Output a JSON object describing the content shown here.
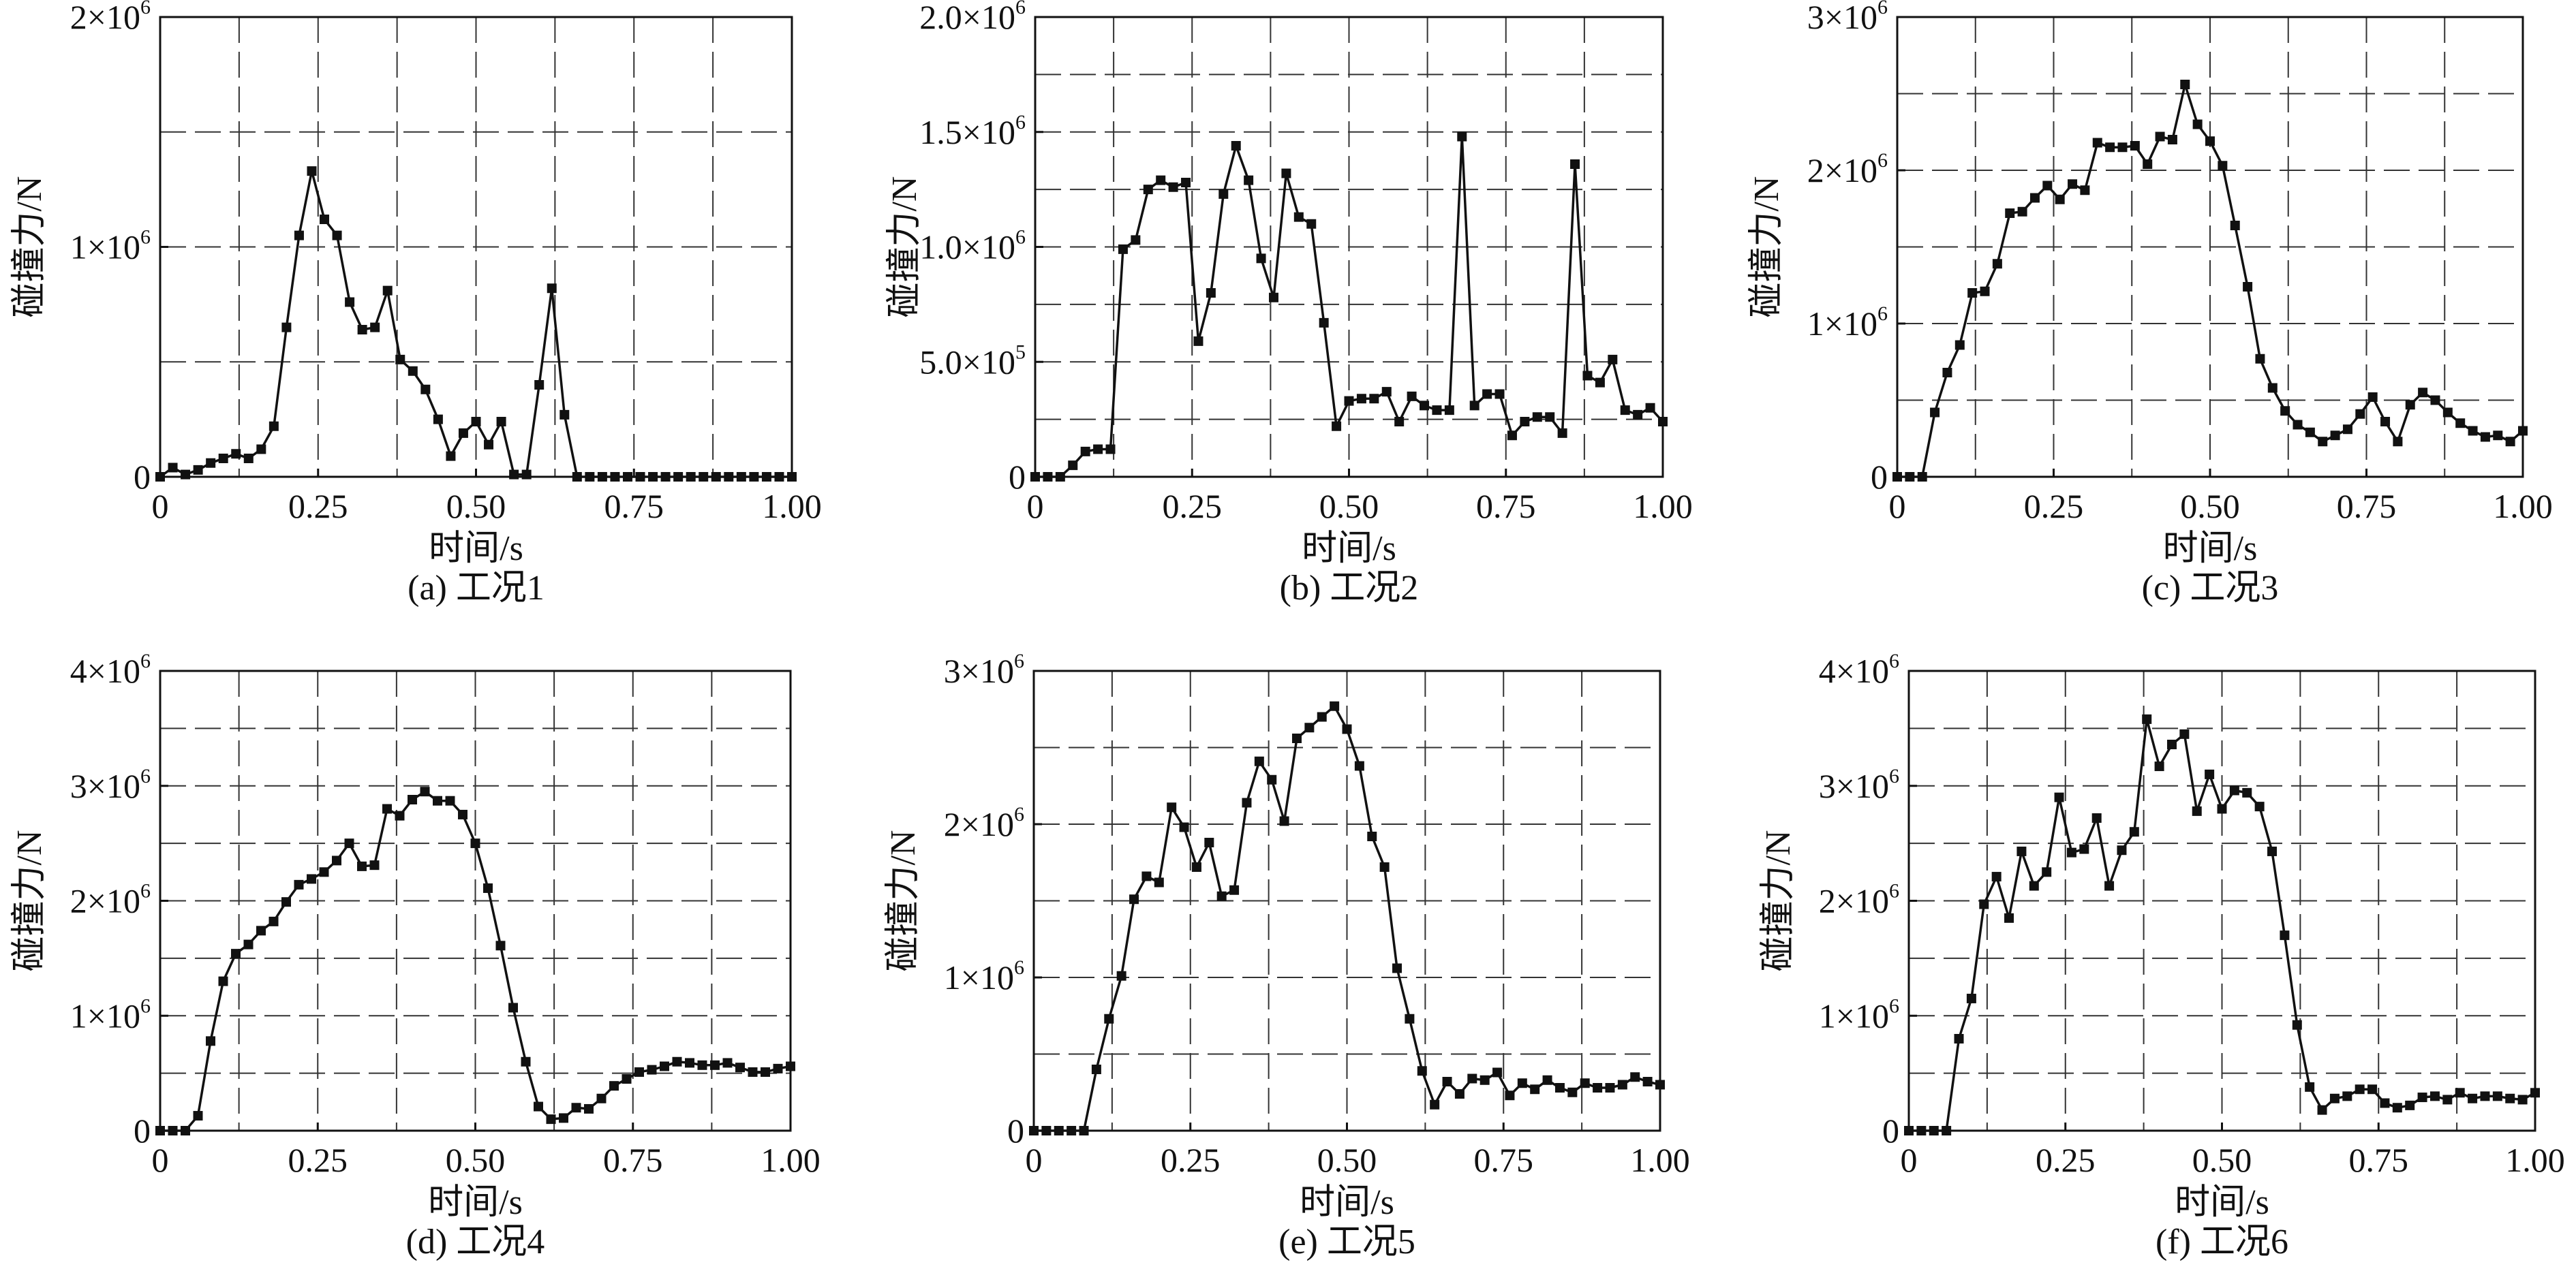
{
  "chart_data": [
    {
      "type": "line",
      "caption": "(a) 工况1",
      "xlabel": "时间/s",
      "ylabel": "碰撞力/N",
      "xlim": [
        0,
        1
      ],
      "ylim": [
        0,
        2000000
      ],
      "xticks": [
        {
          "v": 0,
          "label": "0"
        },
        {
          "v": 0.25,
          "label": "0.25"
        },
        {
          "v": 0.5,
          "label": "0.50"
        },
        {
          "v": 0.75,
          "label": "0.75"
        },
        {
          "v": 1,
          "label": "1.00"
        }
      ],
      "yticks": [
        {
          "v": 0,
          "label": "0",
          "exp": ""
        },
        {
          "v": 1000000,
          "label": "1×10",
          "exp": "6"
        },
        {
          "v": 2000000,
          "label": "2×10",
          "exp": "6"
        }
      ],
      "x_grid": [
        0.125,
        0.25,
        0.375,
        0.5,
        0.625,
        0.75,
        0.875
      ],
      "y_grid": [
        500000,
        1000000,
        1500000
      ],
      "x": [
        0,
        0.02,
        0.04,
        0.06,
        0.08,
        0.1,
        0.12,
        0.14,
        0.16,
        0.18,
        0.2,
        0.22,
        0.24,
        0.26,
        0.28,
        0.3,
        0.32,
        0.34,
        0.36,
        0.38,
        0.4,
        0.42,
        0.44,
        0.46,
        0.48,
        0.5,
        0.52,
        0.54,
        0.56,
        0.58,
        0.6,
        0.62,
        0.64,
        0.66,
        0.68,
        0.7,
        0.72,
        0.74,
        0.76,
        0.78,
        0.8,
        0.82,
        0.84,
        0.86,
        0.88,
        0.9,
        0.92,
        0.94,
        0.96,
        0.98,
        1.0
      ],
      "y": [
        0,
        40000,
        10000,
        30000,
        60000,
        80000,
        100000,
        80000,
        120000,
        220000,
        650000,
        1050000,
        1330000,
        1120000,
        1050000,
        760000,
        640000,
        650000,
        810000,
        510000,
        460000,
        380000,
        250000,
        90000,
        190000,
        240000,
        140000,
        240000,
        10000,
        10000,
        400000,
        820000,
        270000,
        0,
        0,
        0,
        0,
        0,
        0,
        0,
        0,
        0,
        0,
        0,
        0,
        0,
        0,
        0,
        0,
        0,
        0
      ]
    },
    {
      "type": "line",
      "caption": "(b) 工况2",
      "xlabel": "时间/s",
      "ylabel": "碰撞力/N",
      "xlim": [
        0,
        1
      ],
      "ylim": [
        0,
        2000000
      ],
      "xticks": [
        {
          "v": 0,
          "label": "0"
        },
        {
          "v": 0.25,
          "label": "0.25"
        },
        {
          "v": 0.5,
          "label": "0.50"
        },
        {
          "v": 0.75,
          "label": "0.75"
        },
        {
          "v": 1,
          "label": "1.00"
        }
      ],
      "yticks": [
        {
          "v": 0,
          "label": "0",
          "exp": ""
        },
        {
          "v": 500000,
          "label": "5.0×10",
          "exp": "5"
        },
        {
          "v": 1000000,
          "label": "1.0×10",
          "exp": "6"
        },
        {
          "v": 1500000,
          "label": "1.5×10",
          "exp": "6"
        },
        {
          "v": 2000000,
          "label": "2.0×10",
          "exp": "6"
        }
      ],
      "x_grid": [
        0.125,
        0.25,
        0.375,
        0.5,
        0.625,
        0.75,
        0.875
      ],
      "y_grid": [
        250000,
        500000,
        750000,
        1000000,
        1250000,
        1500000,
        1750000
      ],
      "x": [
        0,
        0.02,
        0.04,
        0.06,
        0.08,
        0.1,
        0.12,
        0.14,
        0.16,
        0.18,
        0.2,
        0.22,
        0.24,
        0.26,
        0.28,
        0.3,
        0.32,
        0.34,
        0.36,
        0.38,
        0.4,
        0.42,
        0.44,
        0.46,
        0.48,
        0.5,
        0.52,
        0.54,
        0.56,
        0.58,
        0.6,
        0.62,
        0.64,
        0.66,
        0.68,
        0.7,
        0.72,
        0.74,
        0.76,
        0.78,
        0.8,
        0.82,
        0.84,
        0.86,
        0.88,
        0.9,
        0.92,
        0.94,
        0.96,
        0.98,
        1.0
      ],
      "y": [
        0,
        0,
        0,
        50000,
        110000,
        120000,
        120000,
        990000,
        1030000,
        1250000,
        1290000,
        1260000,
        1280000,
        590000,
        800000,
        1230000,
        1440000,
        1290000,
        950000,
        780000,
        1320000,
        1130000,
        1100000,
        670000,
        220000,
        330000,
        340000,
        340000,
        370000,
        240000,
        350000,
        310000,
        290000,
        290000,
        1480000,
        310000,
        360000,
        360000,
        180000,
        240000,
        260000,
        260000,
        190000,
        1360000,
        440000,
        410000,
        510000,
        290000,
        270000,
        300000,
        240000
      ]
    },
    {
      "type": "line",
      "caption": "(c) 工况3",
      "xlabel": "时间/s",
      "ylabel": "碰撞力/N",
      "xlim": [
        0,
        1
      ],
      "ylim": [
        0,
        3000000
      ],
      "xticks": [
        {
          "v": 0,
          "label": "0"
        },
        {
          "v": 0.25,
          "label": "0.25"
        },
        {
          "v": 0.5,
          "label": "0.50"
        },
        {
          "v": 0.75,
          "label": "0.75"
        },
        {
          "v": 1,
          "label": "1.00"
        }
      ],
      "yticks": [
        {
          "v": 0,
          "label": "0",
          "exp": ""
        },
        {
          "v": 1000000,
          "label": "1×10",
          "exp": "6"
        },
        {
          "v": 2000000,
          "label": "2×10",
          "exp": "6"
        },
        {
          "v": 3000000,
          "label": "3×10",
          "exp": "6"
        }
      ],
      "x_grid": [
        0.125,
        0.25,
        0.375,
        0.5,
        0.625,
        0.75,
        0.875
      ],
      "y_grid": [
        500000,
        1000000,
        1500000,
        2000000,
        2500000
      ],
      "x": [
        0,
        0.02,
        0.04,
        0.06,
        0.08,
        0.1,
        0.12,
        0.14,
        0.16,
        0.18,
        0.2,
        0.22,
        0.24,
        0.26,
        0.28,
        0.3,
        0.32,
        0.34,
        0.36,
        0.38,
        0.4,
        0.42,
        0.44,
        0.46,
        0.48,
        0.5,
        0.52,
        0.54,
        0.56,
        0.58,
        0.6,
        0.62,
        0.64,
        0.66,
        0.68,
        0.7,
        0.72,
        0.74,
        0.76,
        0.78,
        0.8,
        0.82,
        0.84,
        0.86,
        0.88,
        0.9,
        0.92,
        0.94,
        0.96,
        0.98,
        1.0
      ],
      "y": [
        0,
        0,
        0,
        420000,
        680000,
        860000,
        1200000,
        1210000,
        1390000,
        1720000,
        1730000,
        1820000,
        1900000,
        1810000,
        1910000,
        1870000,
        2180000,
        2150000,
        2150000,
        2160000,
        2040000,
        2220000,
        2200000,
        2560000,
        2300000,
        2190000,
        2030000,
        1640000,
        1240000,
        770000,
        580000,
        430000,
        340000,
        290000,
        230000,
        270000,
        310000,
        410000,
        520000,
        360000,
        230000,
        470000,
        550000,
        500000,
        420000,
        350000,
        300000,
        260000,
        270000,
        230000,
        300000
      ]
    },
    {
      "type": "line",
      "caption": "(d) 工况4",
      "xlabel": "时间/s",
      "ylabel": "碰撞力/N",
      "xlim": [
        0,
        1
      ],
      "ylim": [
        0,
        4000000
      ],
      "xticks": [
        {
          "v": 0,
          "label": "0"
        },
        {
          "v": 0.25,
          "label": "0.25"
        },
        {
          "v": 0.5,
          "label": "0.50"
        },
        {
          "v": 0.75,
          "label": "0.75"
        },
        {
          "v": 1,
          "label": "1.00"
        }
      ],
      "yticks": [
        {
          "v": 0,
          "label": "0",
          "exp": ""
        },
        {
          "v": 1000000,
          "label": "1×10",
          "exp": "6"
        },
        {
          "v": 2000000,
          "label": "2×10",
          "exp": "6"
        },
        {
          "v": 3000000,
          "label": "3×10",
          "exp": "6"
        },
        {
          "v": 4000000,
          "label": "4×10",
          "exp": "6"
        }
      ],
      "x_grid": [
        0.125,
        0.25,
        0.375,
        0.5,
        0.625,
        0.75,
        0.875
      ],
      "y_grid": [
        500000,
        1000000,
        1500000,
        2000000,
        2500000,
        3000000,
        3500000
      ],
      "x": [
        0,
        0.02,
        0.04,
        0.06,
        0.08,
        0.1,
        0.12,
        0.14,
        0.16,
        0.18,
        0.2,
        0.22,
        0.24,
        0.26,
        0.28,
        0.3,
        0.32,
        0.34,
        0.36,
        0.38,
        0.4,
        0.42,
        0.44,
        0.46,
        0.48,
        0.5,
        0.52,
        0.54,
        0.56,
        0.58,
        0.6,
        0.62,
        0.64,
        0.66,
        0.68,
        0.7,
        0.72,
        0.74,
        0.76,
        0.78,
        0.8,
        0.82,
        0.84,
        0.86,
        0.88,
        0.9,
        0.92,
        0.94,
        0.96,
        0.98,
        1.0
      ],
      "y": [
        0,
        0,
        0,
        130000,
        780000,
        1300000,
        1540000,
        1620000,
        1740000,
        1820000,
        1990000,
        2140000,
        2190000,
        2250000,
        2350000,
        2500000,
        2300000,
        2310000,
        2800000,
        2740000,
        2880000,
        2950000,
        2870000,
        2870000,
        2750000,
        2500000,
        2110000,
        1610000,
        1070000,
        600000,
        210000,
        100000,
        110000,
        200000,
        190000,
        280000,
        390000,
        450000,
        510000,
        530000,
        560000,
        600000,
        590000,
        570000,
        570000,
        590000,
        550000,
        510000,
        510000,
        540000,
        560000
      ]
    },
    {
      "type": "line",
      "caption": "(e) 工况5",
      "xlabel": "时间/s",
      "ylabel": "碰撞力/N",
      "xlim": [
        0,
        1
      ],
      "ylim": [
        0,
        3000000
      ],
      "xticks": [
        {
          "v": 0,
          "label": "0"
        },
        {
          "v": 0.25,
          "label": "0.25"
        },
        {
          "v": 0.5,
          "label": "0.50"
        },
        {
          "v": 0.75,
          "label": "0.75"
        },
        {
          "v": 1,
          "label": "1.00"
        }
      ],
      "yticks": [
        {
          "v": 0,
          "label": "0",
          "exp": ""
        },
        {
          "v": 1000000,
          "label": "1×10",
          "exp": "6"
        },
        {
          "v": 2000000,
          "label": "2×10",
          "exp": "6"
        },
        {
          "v": 3000000,
          "label": "3×10",
          "exp": "6"
        }
      ],
      "x_grid": [
        0.125,
        0.25,
        0.375,
        0.5,
        0.625,
        0.75,
        0.875
      ],
      "y_grid": [
        500000,
        1000000,
        1500000,
        2000000,
        2500000
      ],
      "x": [
        0,
        0.02,
        0.04,
        0.06,
        0.08,
        0.1,
        0.12,
        0.14,
        0.16,
        0.18,
        0.2,
        0.22,
        0.24,
        0.26,
        0.28,
        0.3,
        0.32,
        0.34,
        0.36,
        0.38,
        0.4,
        0.42,
        0.44,
        0.46,
        0.48,
        0.5,
        0.52,
        0.54,
        0.56,
        0.58,
        0.6,
        0.62,
        0.64,
        0.66,
        0.68,
        0.7,
        0.72,
        0.74,
        0.76,
        0.78,
        0.8,
        0.82,
        0.84,
        0.86,
        0.88,
        0.9,
        0.92,
        0.94,
        0.96,
        0.98,
        1.0
      ],
      "y": [
        0,
        0,
        0,
        0,
        0,
        400000,
        730000,
        1010000,
        1510000,
        1660000,
        1620000,
        2110000,
        1980000,
        1720000,
        1880000,
        1530000,
        1570000,
        2140000,
        2410000,
        2290000,
        2020000,
        2560000,
        2630000,
        2700000,
        2770000,
        2620000,
        2380000,
        1920000,
        1720000,
        1060000,
        730000,
        390000,
        170000,
        320000,
        240000,
        340000,
        330000,
        380000,
        230000,
        310000,
        270000,
        330000,
        280000,
        250000,
        310000,
        280000,
        280000,
        300000,
        350000,
        320000,
        300000
      ]
    },
    {
      "type": "line",
      "caption": "(f) 工况6",
      "xlabel": "时间/s",
      "ylabel": "碰撞力/N",
      "xlim": [
        0,
        1
      ],
      "ylim": [
        0,
        4000000
      ],
      "xticks": [
        {
          "v": 0,
          "label": "0"
        },
        {
          "v": 0.25,
          "label": "0.25"
        },
        {
          "v": 0.5,
          "label": "0.50"
        },
        {
          "v": 0.75,
          "label": "0.75"
        },
        {
          "v": 1,
          "label": "1.00"
        }
      ],
      "yticks": [
        {
          "v": 0,
          "label": "0",
          "exp": ""
        },
        {
          "v": 1000000,
          "label": "1×10",
          "exp": "6"
        },
        {
          "v": 2000000,
          "label": "2×10",
          "exp": "6"
        },
        {
          "v": 3000000,
          "label": "3×10",
          "exp": "6"
        },
        {
          "v": 4000000,
          "label": "4×10",
          "exp": "6"
        }
      ],
      "x_grid": [
        0.125,
        0.25,
        0.375,
        0.5,
        0.625,
        0.75,
        0.875
      ],
      "y_grid": [
        500000,
        1000000,
        1500000,
        2000000,
        2500000,
        3000000,
        3500000
      ],
      "x": [
        0,
        0.02,
        0.04,
        0.06,
        0.08,
        0.1,
        0.12,
        0.14,
        0.16,
        0.18,
        0.2,
        0.22,
        0.24,
        0.26,
        0.28,
        0.3,
        0.32,
        0.34,
        0.36,
        0.38,
        0.4,
        0.42,
        0.44,
        0.46,
        0.48,
        0.5,
        0.52,
        0.54,
        0.56,
        0.58,
        0.6,
        0.62,
        0.64,
        0.66,
        0.68,
        0.7,
        0.72,
        0.74,
        0.76,
        0.78,
        0.8,
        0.82,
        0.84,
        0.86,
        0.88,
        0.9,
        0.92,
        0.94,
        0.96,
        0.98,
        1.0
      ],
      "y": [
        0,
        0,
        0,
        0,
        800000,
        1150000,
        1970000,
        2210000,
        1850000,
        2430000,
        2130000,
        2250000,
        2900000,
        2420000,
        2450000,
        2720000,
        2130000,
        2440000,
        2600000,
        3580000,
        3170000,
        3360000,
        3450000,
        2780000,
        3100000,
        2800000,
        2960000,
        2940000,
        2820000,
        2430000,
        1700000,
        920000,
        380000,
        180000,
        280000,
        300000,
        360000,
        360000,
        240000,
        200000,
        220000,
        290000,
        300000,
        270000,
        330000,
        280000,
        300000,
        300000,
        280000,
        270000,
        330000
      ]
    }
  ]
}
